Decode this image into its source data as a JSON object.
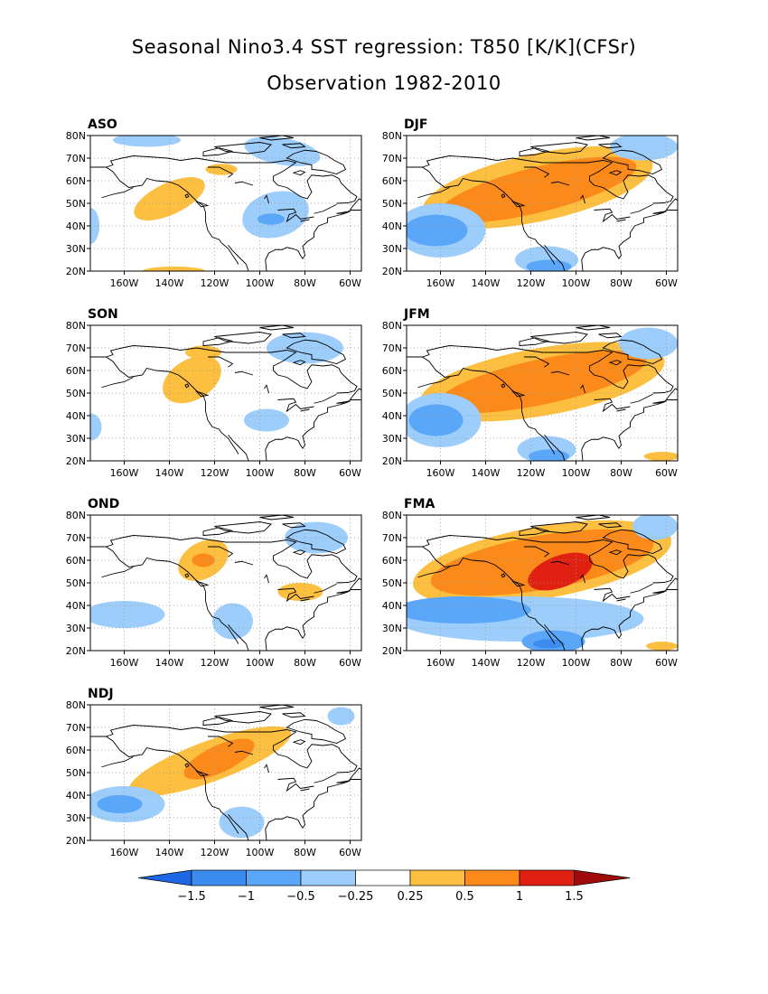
{
  "header": {
    "title": "Seasonal Nino3.4 SST regression: T850 [K/K](CFSr)",
    "subtitle": "Observation 1982-2010"
  },
  "colors": {
    "n4": "#1f66e5",
    "n3": "#3c8cf0",
    "n2": "#5aa6f8",
    "n1": "#9ccdfb",
    "p1": "#fcbf40",
    "p2": "#fc8a1a",
    "p3": "#f65f0f",
    "p4": "#e02010",
    "p5": "#a00a0a",
    "coast": "#000000",
    "grid": "#999999"
  },
  "axes": {
    "lat_labels": [
      "80N",
      "70N",
      "60N",
      "50N",
      "40N",
      "30N",
      "20N"
    ],
    "lon_labels": [
      "160W",
      "140W",
      "120W",
      "100W",
      "80W",
      "60W"
    ]
  },
  "panels": [
    {
      "label": "ASO",
      "blobs": [
        {
          "c": "p1",
          "lon": -140,
          "lat": 52,
          "rx": 17,
          "ry": 7,
          "rot": -25
        },
        {
          "c": "p1",
          "lon": -117,
          "lat": 65,
          "rx": 7,
          "ry": 2.5,
          "rot": 0
        },
        {
          "c": "p1",
          "lon": -138,
          "lat": 20,
          "rx": 14,
          "ry": 2,
          "rot": 0
        },
        {
          "c": "n1",
          "lon": -93,
          "lat": 45,
          "rx": 15,
          "ry": 10,
          "rot": -15
        },
        {
          "c": "n2",
          "lon": -95,
          "lat": 43,
          "rx": 6,
          "ry": 2.5,
          "rot": 0
        },
        {
          "c": "n1",
          "lon": -90,
          "lat": 73,
          "rx": 17,
          "ry": 6,
          "rot": 10
        },
        {
          "c": "n1",
          "lon": -150,
          "lat": 78,
          "rx": 15,
          "ry": 3,
          "rot": 0
        },
        {
          "c": "n1",
          "lon": -175,
          "lat": 40,
          "rx": 4,
          "ry": 8,
          "rot": 0
        }
      ]
    },
    {
      "label": "DJF",
      "blobs": [
        {
          "c": "p1",
          "lon": -117,
          "lat": 57,
          "rx": 52,
          "ry": 15,
          "rot": -12
        },
        {
          "c": "p2",
          "lon": -117,
          "lat": 56,
          "rx": 45,
          "ry": 10,
          "rot": -14
        },
        {
          "c": "n1",
          "lon": -160,
          "lat": 38,
          "rx": 20,
          "ry": 12,
          "rot": 0
        },
        {
          "c": "n2",
          "lon": -162,
          "lat": 38,
          "rx": 14,
          "ry": 7,
          "rot": 0
        },
        {
          "c": "n1",
          "lon": -113,
          "lat": 25,
          "rx": 14,
          "ry": 6,
          "rot": 0
        },
        {
          "c": "n2",
          "lon": -112,
          "lat": 22,
          "rx": 10,
          "ry": 3,
          "rot": 0
        },
        {
          "c": "n1",
          "lon": -70,
          "lat": 75,
          "rx": 15,
          "ry": 6,
          "rot": 0
        }
      ]
    },
    {
      "label": "SON",
      "blobs": [
        {
          "c": "p1",
          "lon": -130,
          "lat": 56,
          "rx": 14,
          "ry": 9,
          "rot": -30
        },
        {
          "c": "p1",
          "lon": -125,
          "lat": 68,
          "rx": 8,
          "ry": 3,
          "rot": 0
        },
        {
          "c": "n1",
          "lon": -80,
          "lat": 70,
          "rx": 17,
          "ry": 7,
          "rot": 0
        },
        {
          "c": "n1",
          "lon": -97,
          "lat": 38,
          "rx": 10,
          "ry": 5,
          "rot": 0
        },
        {
          "c": "n1",
          "lon": -175,
          "lat": 35,
          "rx": 5,
          "ry": 6,
          "rot": 0
        }
      ]
    },
    {
      "label": "JFM",
      "blobs": [
        {
          "c": "p1",
          "lon": -115,
          "lat": 55,
          "rx": 55,
          "ry": 15,
          "rot": -10
        },
        {
          "c": "p2",
          "lon": -115,
          "lat": 55,
          "rx": 47,
          "ry": 10,
          "rot": -12
        },
        {
          "c": "n1",
          "lon": -160,
          "lat": 38,
          "rx": 18,
          "ry": 12,
          "rot": 0
        },
        {
          "c": "n2",
          "lon": -162,
          "lat": 38,
          "rx": 12,
          "ry": 7,
          "rot": 0
        },
        {
          "c": "n1",
          "lon": -113,
          "lat": 25,
          "rx": 13,
          "ry": 6,
          "rot": 0
        },
        {
          "c": "n2",
          "lon": -112,
          "lat": 22,
          "rx": 9,
          "ry": 3,
          "rot": 0
        },
        {
          "c": "n1",
          "lon": -68,
          "lat": 72,
          "rx": 13,
          "ry": 7,
          "rot": 0
        },
        {
          "c": "p1",
          "lon": -62,
          "lat": 22,
          "rx": 8,
          "ry": 2,
          "rot": 0
        }
      ]
    },
    {
      "label": "OND",
      "blobs": [
        {
          "c": "p1",
          "lon": -125,
          "lat": 60,
          "rx": 12,
          "ry": 8,
          "rot": -30
        },
        {
          "c": "p2",
          "lon": -125,
          "lat": 60,
          "rx": 5,
          "ry": 3,
          "rot": 0
        },
        {
          "c": "p1",
          "lon": -82,
          "lat": 46,
          "rx": 10,
          "ry": 4,
          "rot": 0
        },
        {
          "c": "n1",
          "lon": -160,
          "lat": 36,
          "rx": 18,
          "ry": 6,
          "rot": 0
        },
        {
          "c": "n1",
          "lon": -112,
          "lat": 33,
          "rx": 9,
          "ry": 8,
          "rot": 0
        },
        {
          "c": "n1",
          "lon": -75,
          "lat": 70,
          "rx": 14,
          "ry": 7,
          "rot": 0
        }
      ]
    },
    {
      "label": "FMA",
      "blobs": [
        {
          "c": "p1",
          "lon": -115,
          "lat": 59,
          "rx": 58,
          "ry": 16,
          "rot": -10
        },
        {
          "c": "p2",
          "lon": -115,
          "lat": 59,
          "rx": 50,
          "ry": 12,
          "rot": -10
        },
        {
          "c": "p4",
          "lon": -107,
          "lat": 55,
          "rx": 15,
          "ry": 7,
          "rot": -20
        },
        {
          "c": "n1",
          "lon": -125,
          "lat": 34,
          "rx": 55,
          "ry": 10,
          "rot": 0
        },
        {
          "c": "n2",
          "lon": -150,
          "lat": 38,
          "rx": 30,
          "ry": 6,
          "rot": 0
        },
        {
          "c": "n2",
          "lon": -110,
          "lat": 24,
          "rx": 14,
          "ry": 5,
          "rot": 0
        },
        {
          "c": "n3",
          "lon": -112,
          "lat": 23,
          "rx": 7,
          "ry": 2,
          "rot": 0
        },
        {
          "c": "n1",
          "lon": -65,
          "lat": 75,
          "rx": 10,
          "ry": 6,
          "rot": 0
        },
        {
          "c": "p1",
          "lon": -62,
          "lat": 22,
          "rx": 7,
          "ry": 2,
          "rot": 0
        }
      ]
    },
    {
      "label": "NDJ",
      "blobs": [
        {
          "c": "p1",
          "lon": -122,
          "lat": 55,
          "rx": 38,
          "ry": 9,
          "rot": -20
        },
        {
          "c": "p2",
          "lon": -118,
          "lat": 56,
          "rx": 17,
          "ry": 6,
          "rot": -25
        },
        {
          "c": "n1",
          "lon": -160,
          "lat": 36,
          "rx": 18,
          "ry": 8,
          "rot": 0
        },
        {
          "c": "n2",
          "lon": -162,
          "lat": 36,
          "rx": 10,
          "ry": 4,
          "rot": 0
        },
        {
          "c": "n1",
          "lon": -108,
          "lat": 28,
          "rx": 10,
          "ry": 7,
          "rot": 0
        },
        {
          "c": "n1",
          "lon": -64,
          "lat": 75,
          "rx": 6,
          "ry": 4,
          "rot": 0
        }
      ]
    }
  ],
  "colorbar": {
    "labels": [
      "-1.5",
      "-1",
      "-0.5",
      "-0.25",
      "0.25",
      "0.5",
      "1",
      "1.5"
    ]
  }
}
